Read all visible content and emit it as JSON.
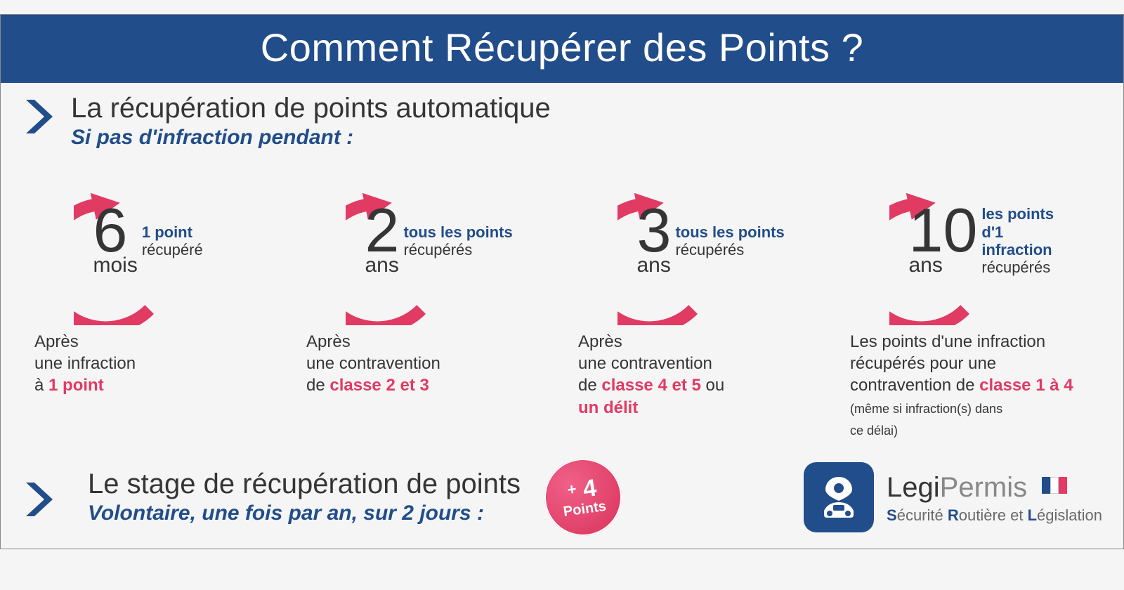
{
  "colors": {
    "primary": "#214d8a",
    "accent": "#e13a63",
    "text": "#353535",
    "grey": "#6a6a6a",
    "bg": "#f5f5f5",
    "white": "#ffffff"
  },
  "title": "Comment Récupérer des Points ?",
  "section1": {
    "title": "La récupération de points automatique",
    "subtitle": "Si pas d'infraction pendant :"
  },
  "cards": [
    {
      "num": "6",
      "unit": "mois",
      "right_bold": "1 point",
      "right_reg": "récupéré",
      "desc_pre": "Après\nune infraction\nà ",
      "desc_hl": "1 point",
      "desc_post": ""
    },
    {
      "num": "2",
      "unit": "ans",
      "right_bold": "tous les points",
      "right_reg": "récupérés",
      "desc_pre": "Après\nune contravention\nde ",
      "desc_hl": "classe 2 et 3",
      "desc_post": ""
    },
    {
      "num": "3",
      "unit": "ans",
      "right_bold": "tous les points",
      "right_reg": "récupérés",
      "desc_pre": "Après\nune contravention\nde ",
      "desc_hl": "classe 4 et 5",
      "desc_post": " ou\n",
      "desc_hl2": "un délit"
    },
    {
      "num": "10",
      "unit": "ans",
      "right_bold": "les points\nd'1 infraction",
      "right_reg": "récupérés",
      "desc_pre": "Les points d'une infraction\nrécupérés pour une\ncontravention de ",
      "desc_hl": "classe 1 à 4",
      "desc_post": "",
      "desc_small": "(même si infraction(s) dans\nce délai)"
    }
  ],
  "circle": {
    "stroke": "#e13a63",
    "stroke_width": 18,
    "radius": 88,
    "gap_deg": 70,
    "arrow": true
  },
  "section2": {
    "title": "Le stage de récupération de points",
    "subtitle": "Volontaire, une fois par an, sur 2 jours :"
  },
  "badge": {
    "plus": "+",
    "num": "4",
    "label": "Points"
  },
  "brand": {
    "name_bold": "Legi",
    "name_light": "Permis",
    "tagline": {
      "s": "S",
      "srest": "écurité ",
      "r": "R",
      "rrest": "outière et ",
      "l": "L",
      "lrest": "égislation"
    },
    "flag": [
      "#214d8a",
      "#ffffff",
      "#e13a63"
    ]
  }
}
